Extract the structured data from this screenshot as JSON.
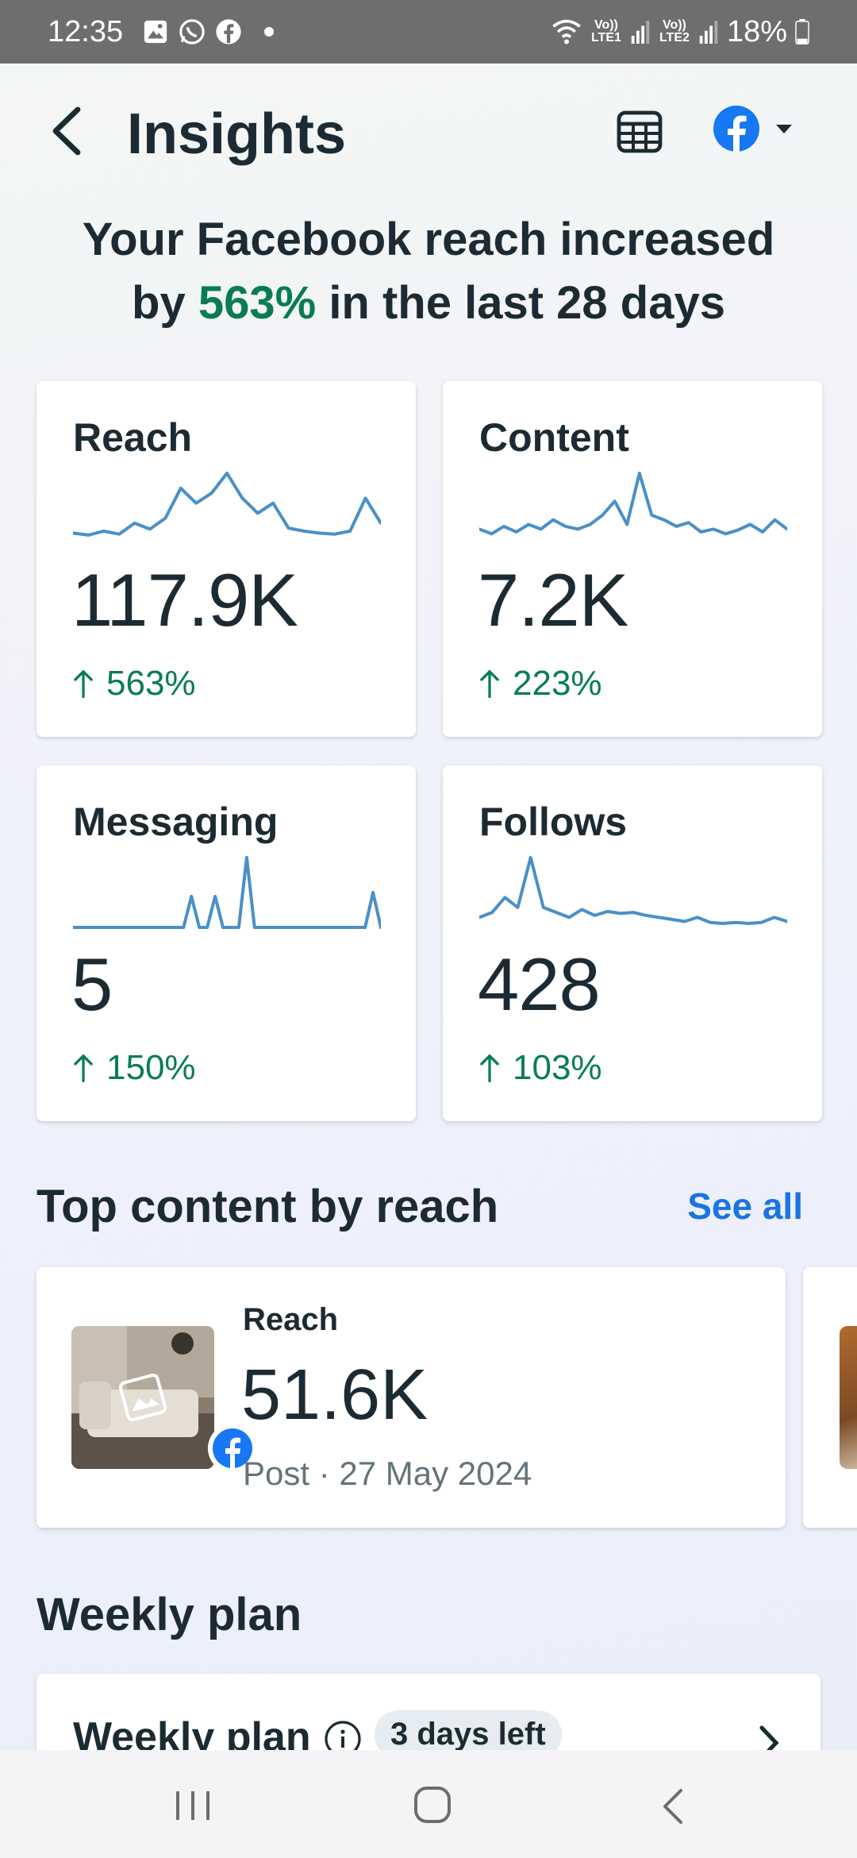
{
  "status_bar": {
    "time": "12:35",
    "lte1": "Vo)) LTE1",
    "lte2": "Vo)) LTE2",
    "battery": "18%"
  },
  "header": {
    "title": "Insights",
    "icons": [
      "back-icon",
      "table-icon",
      "facebook-icon",
      "caret-down-icon"
    ]
  },
  "headline": {
    "part1": "Your Facebook reach increased",
    "part2_prefix": "by",
    "highlight": "563%",
    "part2_suffix": "in the last 28 days"
  },
  "metrics": [
    {
      "title": "Reach",
      "value": "117.9K",
      "change": "563%",
      "spark": [
        10,
        8,
        12,
        9,
        20,
        14,
        25,
        55,
        40,
        50,
        70,
        45,
        30,
        40,
        15,
        12,
        10,
        9,
        12,
        45,
        20
      ]
    },
    {
      "title": "Content",
      "value": "7.2K",
      "change": "223%",
      "spark": [
        15,
        10,
        18,
        12,
        20,
        15,
        25,
        18,
        15,
        20,
        30,
        45,
        20,
        75,
        30,
        25,
        18,
        22,
        12,
        15,
        10,
        14,
        20,
        12,
        25,
        15
      ]
    },
    {
      "title": "Messaging",
      "value": "5",
      "change": "150%",
      "spark": [
        0,
        0,
        0,
        0,
        0,
        0,
        0,
        0,
        0,
        0,
        0,
        0,
        0,
        0,
        0,
        40,
        0,
        0,
        40,
        0,
        0,
        0,
        90,
        0,
        0,
        0,
        0,
        0,
        0,
        0,
        0,
        0,
        0,
        0,
        0,
        0,
        0,
        0,
        45,
        0
      ]
    },
    {
      "title": "Follows",
      "value": "428",
      "change": "103%",
      "spark": [
        10,
        15,
        30,
        20,
        70,
        20,
        15,
        10,
        18,
        12,
        16,
        14,
        15,
        12,
        10,
        8,
        6,
        10,
        5,
        4,
        5,
        4,
        5,
        10,
        6
      ]
    }
  ],
  "top_content": {
    "section_title": "Top content by reach",
    "see_all": "See all",
    "item": {
      "label": "Reach",
      "value": "51.6K",
      "meta": "Post · 27 May 2024"
    }
  },
  "weekly_plan": {
    "section_title": "Weekly plan",
    "card_title": "Weekly plan",
    "badge": "3 days left"
  },
  "colors": {
    "positive": "#0a7c54",
    "link": "#1b74e4",
    "sparkline": "#4a90c8",
    "facebook": "#1877f2"
  }
}
